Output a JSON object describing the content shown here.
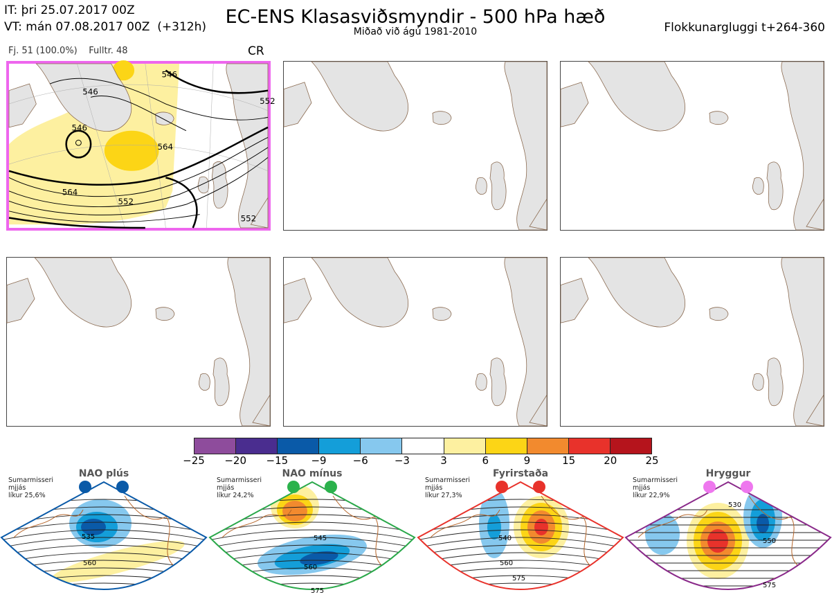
{
  "header": {
    "it_line": "IT: þri 25.07.2017 00Z",
    "vt_line": "VT: mán 07.08.2017 00Z  (+312h)",
    "title": "EC-ENS Klasasviðsmyndir - 500 hPa hæð",
    "subtitle": "Miðað við ágú 1981-2010",
    "window_label": "Flokkunargluggi t+264-360"
  },
  "panel_main": {
    "members_label": "Fj. 51 (100.0%)",
    "fulltr_label": "Fulltr. 48",
    "regime_code": "CR",
    "highlight_color": "#ee66ee",
    "contour_labels": [
      "546",
      "546",
      "546",
      "564",
      "564",
      "552",
      "552",
      "552"
    ]
  },
  "colorbar": {
    "colors": [
      "#8e4c9c",
      "#4a2d8f",
      "#0a5aa8",
      "#149ed9",
      "#86c8ee",
      "#ffffff",
      "#fdf0a0",
      "#fcd516",
      "#f28a2e",
      "#e8322b",
      "#b5141c"
    ],
    "labels": [
      "−25",
      "−20",
      "−15",
      "−9",
      "−6",
      "−3",
      "3",
      "6",
      "9",
      "15",
      "20",
      "25"
    ]
  },
  "regimes": [
    {
      "name": "NAO plús",
      "note": "Sumarmisseri\nmjjás\nlíkur 25,6%",
      "color": "#0a5aa8",
      "dot_color": "#0a5aa8",
      "contours": [
        "535",
        "560"
      ]
    },
    {
      "name": "NAO mínus",
      "note": "Sumarmisseri\nmjjás\nlíkur 24,2%",
      "color": "#2aa84a",
      "dot_color": "#2bb24c",
      "contours": [
        "545",
        "560",
        "575"
      ]
    },
    {
      "name": "Fyrirstaða",
      "note": "Sumarmisseri\nmjjás\nlíkur 27,3%",
      "color": "#e8322b",
      "dot_color": "#e8322b",
      "contours": [
        "540",
        "560",
        "575"
      ]
    },
    {
      "name": "Hryggur",
      "note": "Sumarmisseri\nmjjás\nlíkur 22,9%",
      "color": "#8a2a8a",
      "dot_color": "#ee77ee",
      "contours": [
        "530",
        "550",
        "575"
      ]
    }
  ]
}
